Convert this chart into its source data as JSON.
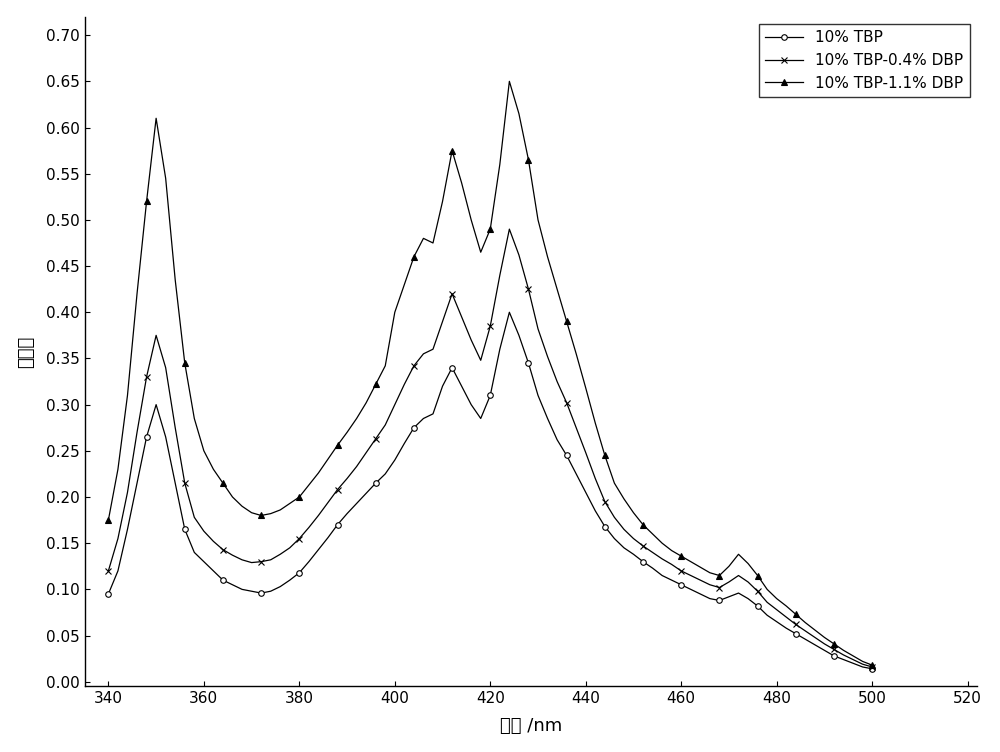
{
  "xlabel": "波长 /nm",
  "ylabel": "吸光度",
  "xlim": [
    335,
    522
  ],
  "ylim": [
    -0.005,
    0.72
  ],
  "xticks": [
    340,
    360,
    380,
    400,
    420,
    440,
    460,
    480,
    500,
    520
  ],
  "yticks": [
    0.0,
    0.05,
    0.1,
    0.15,
    0.2,
    0.25,
    0.3,
    0.35,
    0.4,
    0.45,
    0.5,
    0.55,
    0.6,
    0.65,
    0.7
  ],
  "legend_labels": [
    "10% TBP",
    "10% TBP-0.4% DBP",
    "10% TBP-1.1% DBP"
  ],
  "line_color": "#000000",
  "markers": [
    "o",
    "x",
    "^"
  ],
  "markersize": [
    4,
    5,
    5
  ],
  "linewidth": 0.9,
  "markevery": 4,
  "figure_size": [
    10.0,
    7.52
  ],
  "series": {
    "tbp": {
      "x": [
        340,
        342,
        344,
        346,
        348,
        350,
        352,
        354,
        356,
        358,
        360,
        362,
        364,
        366,
        368,
        370,
        372,
        374,
        376,
        378,
        380,
        382,
        384,
        386,
        388,
        390,
        392,
        394,
        396,
        398,
        400,
        402,
        404,
        406,
        408,
        410,
        412,
        414,
        416,
        418,
        420,
        422,
        424,
        426,
        428,
        430,
        432,
        434,
        436,
        438,
        440,
        442,
        444,
        446,
        448,
        450,
        452,
        454,
        456,
        458,
        460,
        462,
        464,
        466,
        468,
        470,
        472,
        474,
        476,
        478,
        480,
        482,
        484,
        486,
        488,
        490,
        492,
        494,
        496,
        498,
        500
      ],
      "y": [
        0.095,
        0.12,
        0.165,
        0.215,
        0.265,
        0.3,
        0.265,
        0.215,
        0.165,
        0.14,
        0.13,
        0.12,
        0.11,
        0.105,
        0.1,
        0.098,
        0.096,
        0.098,
        0.103,
        0.11,
        0.118,
        0.13,
        0.143,
        0.156,
        0.17,
        0.182,
        0.193,
        0.204,
        0.215,
        0.225,
        0.24,
        0.258,
        0.275,
        0.285,
        0.29,
        0.32,
        0.34,
        0.32,
        0.3,
        0.285,
        0.31,
        0.36,
        0.4,
        0.375,
        0.345,
        0.31,
        0.285,
        0.262,
        0.245,
        0.225,
        0.205,
        0.185,
        0.168,
        0.155,
        0.145,
        0.138,
        0.13,
        0.123,
        0.115,
        0.11,
        0.105,
        0.1,
        0.095,
        0.09,
        0.088,
        0.092,
        0.096,
        0.09,
        0.082,
        0.072,
        0.065,
        0.058,
        0.052,
        0.046,
        0.04,
        0.034,
        0.028,
        0.024,
        0.02,
        0.016,
        0.014
      ]
    },
    "tbp_04dbp": {
      "x": [
        340,
        342,
        344,
        346,
        348,
        350,
        352,
        354,
        356,
        358,
        360,
        362,
        364,
        366,
        368,
        370,
        372,
        374,
        376,
        378,
        380,
        382,
        384,
        386,
        388,
        390,
        392,
        394,
        396,
        398,
        400,
        402,
        404,
        406,
        408,
        410,
        412,
        414,
        416,
        418,
        420,
        422,
        424,
        426,
        428,
        430,
        432,
        434,
        436,
        438,
        440,
        442,
        444,
        446,
        448,
        450,
        452,
        454,
        456,
        458,
        460,
        462,
        464,
        466,
        468,
        470,
        472,
        474,
        476,
        478,
        480,
        482,
        484,
        486,
        488,
        490,
        492,
        494,
        496,
        498,
        500
      ],
      "y": [
        0.12,
        0.155,
        0.205,
        0.27,
        0.33,
        0.375,
        0.34,
        0.275,
        0.215,
        0.178,
        0.163,
        0.152,
        0.143,
        0.137,
        0.132,
        0.129,
        0.13,
        0.132,
        0.138,
        0.145,
        0.155,
        0.167,
        0.18,
        0.194,
        0.208,
        0.22,
        0.233,
        0.248,
        0.263,
        0.278,
        0.3,
        0.322,
        0.342,
        0.355,
        0.36,
        0.39,
        0.42,
        0.395,
        0.37,
        0.348,
        0.385,
        0.44,
        0.49,
        0.462,
        0.425,
        0.382,
        0.352,
        0.325,
        0.302,
        0.275,
        0.248,
        0.22,
        0.195,
        0.178,
        0.165,
        0.155,
        0.147,
        0.14,
        0.133,
        0.127,
        0.12,
        0.115,
        0.11,
        0.105,
        0.102,
        0.108,
        0.115,
        0.108,
        0.098,
        0.086,
        0.078,
        0.07,
        0.062,
        0.055,
        0.048,
        0.041,
        0.035,
        0.029,
        0.024,
        0.019,
        0.016
      ]
    },
    "tbp_11dbp": {
      "x": [
        340,
        342,
        344,
        346,
        348,
        350,
        352,
        354,
        356,
        358,
        360,
        362,
        364,
        366,
        368,
        370,
        372,
        374,
        376,
        378,
        380,
        382,
        384,
        386,
        388,
        390,
        392,
        394,
        396,
        398,
        400,
        402,
        404,
        406,
        408,
        410,
        412,
        414,
        416,
        418,
        420,
        422,
        424,
        426,
        428,
        430,
        432,
        434,
        436,
        438,
        440,
        442,
        444,
        446,
        448,
        450,
        452,
        454,
        456,
        458,
        460,
        462,
        464,
        466,
        468,
        470,
        472,
        474,
        476,
        478,
        480,
        482,
        484,
        486,
        488,
        490,
        492,
        494,
        496,
        498,
        500
      ],
      "y": [
        0.175,
        0.23,
        0.31,
        0.42,
        0.52,
        0.61,
        0.545,
        0.435,
        0.345,
        0.285,
        0.25,
        0.23,
        0.215,
        0.2,
        0.19,
        0.183,
        0.18,
        0.182,
        0.186,
        0.193,
        0.2,
        0.213,
        0.226,
        0.241,
        0.256,
        0.27,
        0.285,
        0.302,
        0.322,
        0.342,
        0.4,
        0.43,
        0.46,
        0.48,
        0.475,
        0.52,
        0.575,
        0.54,
        0.5,
        0.465,
        0.49,
        0.56,
        0.65,
        0.615,
        0.565,
        0.5,
        0.46,
        0.425,
        0.39,
        0.355,
        0.318,
        0.28,
        0.245,
        0.215,
        0.198,
        0.183,
        0.17,
        0.16,
        0.15,
        0.142,
        0.136,
        0.13,
        0.124,
        0.118,
        0.115,
        0.125,
        0.138,
        0.128,
        0.115,
        0.1,
        0.09,
        0.082,
        0.073,
        0.064,
        0.056,
        0.048,
        0.041,
        0.034,
        0.028,
        0.022,
        0.018
      ]
    }
  }
}
